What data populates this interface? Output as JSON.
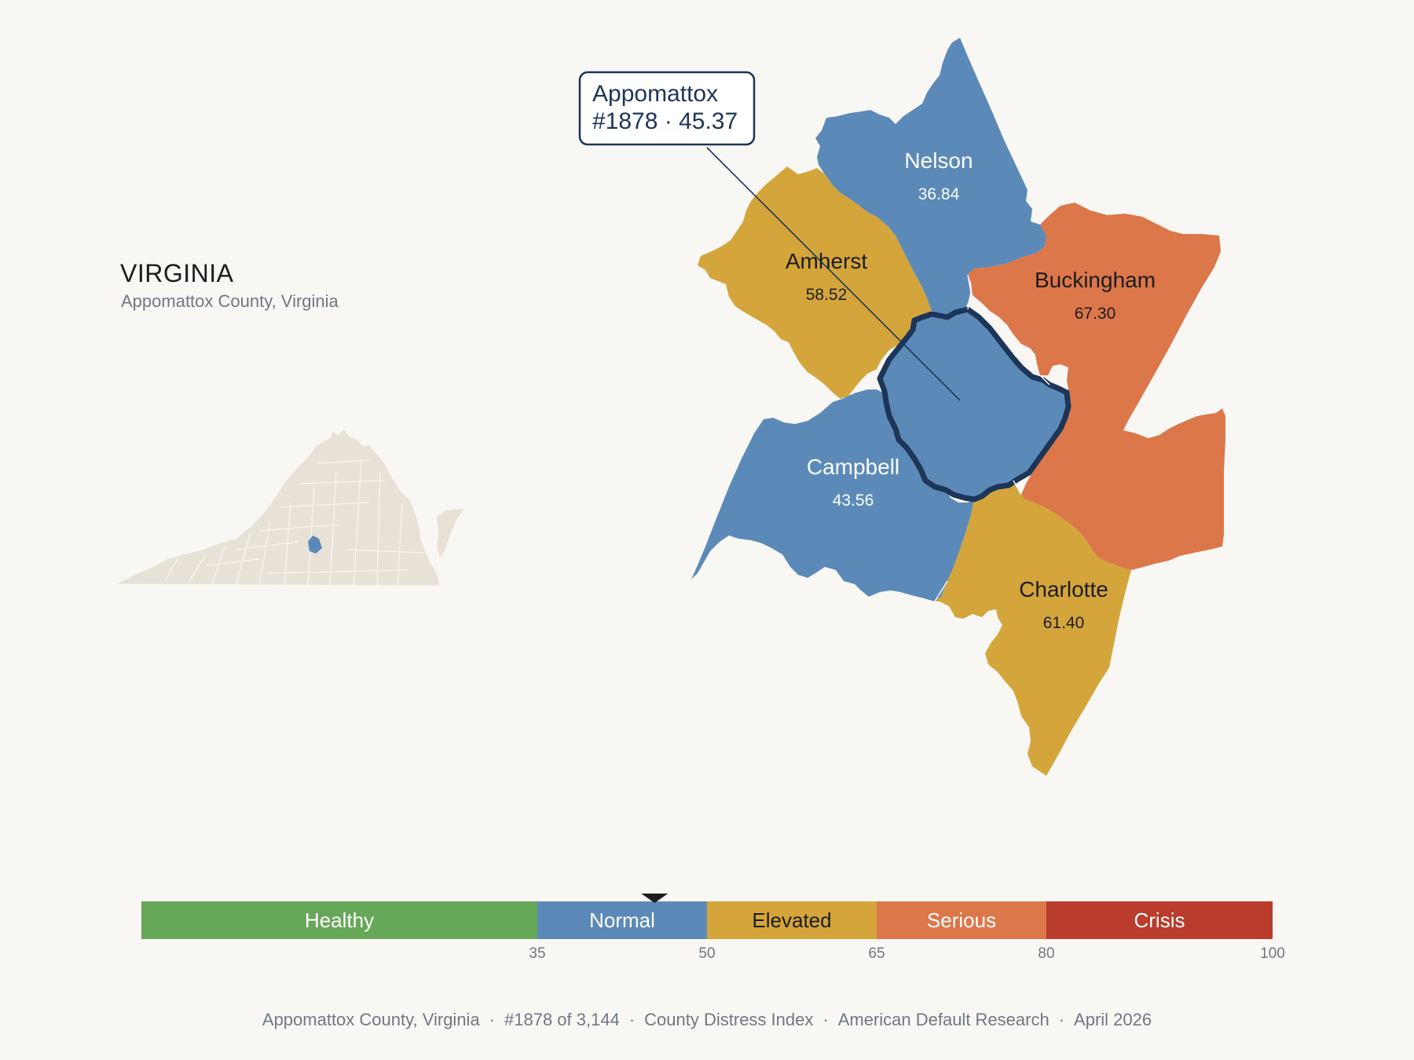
{
  "inset": {
    "state_name": "VIRGINIA",
    "subtitle": "Appomattox County, Virginia"
  },
  "callout": {
    "county": "Appomattox",
    "detail": "#1878 · 45.37"
  },
  "counties": [
    {
      "name": "Nelson",
      "value": "36.84",
      "band": "Normal",
      "color": "#5b8ab9",
      "label_color": "#ffffff"
    },
    {
      "name": "Amherst",
      "value": "58.52",
      "band": "Elevated",
      "color": "#d4a53b",
      "label_color": "#1c1c1c"
    },
    {
      "name": "Buckingham",
      "value": "67.30",
      "band": "Serious",
      "color": "#dc774a",
      "label_color": "#1c1c1c"
    },
    {
      "name": "Campbell",
      "value": "43.56",
      "band": "Normal",
      "color": "#5b8ab9",
      "label_color": "#ffffff"
    },
    {
      "name": "Charlotte",
      "value": "61.40",
      "band": "Elevated",
      "color": "#d4a53b",
      "label_color": "#1c1c1c"
    },
    {
      "name": "Appomattox",
      "value": "45.37",
      "band": "Normal",
      "color": "#5b8ab9",
      "highlighted": true
    },
    {
      "name": "",
      "value": "",
      "band": "Serious",
      "color": "#dc774a"
    }
  ],
  "legend": {
    "bands": [
      {
        "label": "Healthy",
        "from": 0,
        "to": 35,
        "color": "#67a758",
        "text_color": "#ffffff"
      },
      {
        "label": "Normal",
        "from": 35,
        "to": 50,
        "color": "#5b8ab9",
        "text_color": "#ffffff"
      },
      {
        "label": "Elevated",
        "from": 50,
        "to": 65,
        "color": "#d4a53b",
        "text_color": "#1c1c1c"
      },
      {
        "label": "Serious",
        "from": 65,
        "to": 80,
        "color": "#dc774a",
        "text_color": "#ffffff"
      },
      {
        "label": "Crisis",
        "from": 80,
        "to": 100,
        "color": "#b93c2c",
        "text_color": "#ffffff"
      }
    ],
    "ticks": [
      "35",
      "50",
      "65",
      "80",
      "100"
    ],
    "marker_value": 45.37
  },
  "footer": {
    "county": "Appomattox County, Virginia",
    "rank": "#1878 of 3,144",
    "index": "County Distress Index",
    "source": "American Default Research",
    "date": "April 2026"
  },
  "colors": {
    "background": "#f9f7f4",
    "highlight_outline": "#1d3557",
    "inset_state": "#e7e1d6",
    "inset_highlight": "#5b8ab9"
  }
}
